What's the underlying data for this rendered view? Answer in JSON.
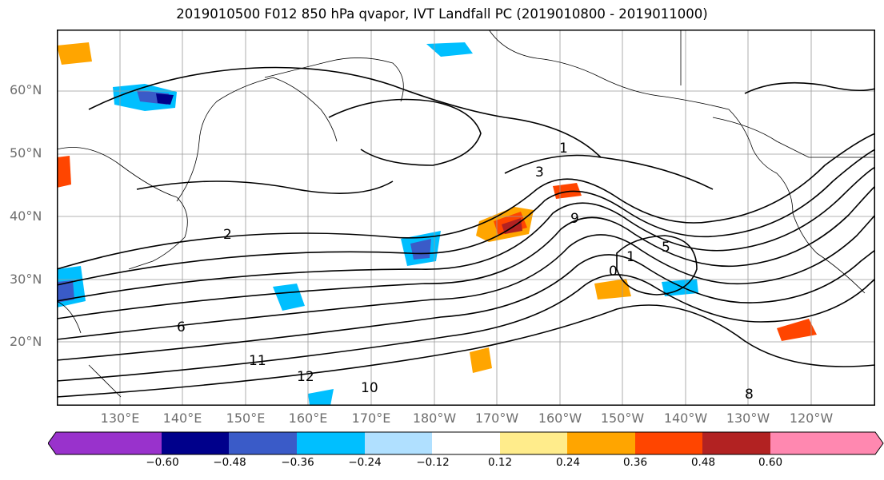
{
  "title": "2019010500 F012 850 hPa qvapor, IVT Landfall PC (2019010800 - 2019011000)",
  "map": {
    "lat_labels": [
      {
        "lat": 60,
        "text": "60°N"
      },
      {
        "lat": 50,
        "text": "50°N"
      },
      {
        "lat": 40,
        "text": "40°N"
      },
      {
        "lat": 30,
        "text": "30°N"
      },
      {
        "lat": 20,
        "text": "20°N"
      }
    ],
    "lon_labels": [
      {
        "lon": 130,
        "text": "130°E"
      },
      {
        "lon": 140,
        "text": "140°E"
      },
      {
        "lon": 150,
        "text": "150°E"
      },
      {
        "lon": 160,
        "text": "160°E"
      },
      {
        "lon": 170,
        "text": "170°E"
      },
      {
        "lon": 180,
        "text": "180°W"
      },
      {
        "lon": 190,
        "text": "170°W"
      },
      {
        "lon": 200,
        "text": "160°W"
      },
      {
        "lon": 210,
        "text": "150°W"
      },
      {
        "lon": 220,
        "text": "140°W"
      },
      {
        "lon": 230,
        "text": "130°W"
      },
      {
        "lon": 240,
        "text": "120°W"
      }
    ],
    "contour_labels": [
      "2",
      "3",
      "9",
      "1",
      "5",
      "1",
      "0",
      "11",
      "12",
      "10",
      "6",
      "8"
    ]
  },
  "colorbar": {
    "colors": [
      "#9932CC",
      "#00008B",
      "#3A5BC8",
      "#00BFFF",
      "#B0E0FF",
      "#FFFFFF",
      "#FFEC8B",
      "#FFA500",
      "#FF4500",
      "#B22222",
      "#FF88B0"
    ],
    "tick_labels": [
      "−0.60",
      "−0.48",
      "−0.36",
      "−0.24",
      "−0.12",
      "0.12",
      "0.24",
      "0.36",
      "0.48",
      "0.60"
    ]
  }
}
